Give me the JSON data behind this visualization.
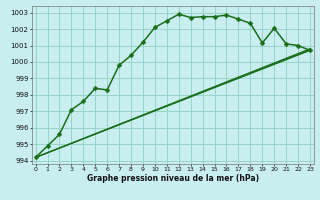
{
  "title": "Graphe pression niveau de la mer (hPa)",
  "background_color": "#c8eef0",
  "grid_color": "#98d4c8",
  "line_color": "#1a6e1a",
  "marker_color": "#1a6e1a",
  "series1_x": [
    0,
    1,
    2,
    3,
    4,
    5,
    6,
    7,
    8,
    9,
    10,
    11,
    12,
    13,
    14,
    15,
    16,
    17,
    18,
    19,
    20,
    21,
    22,
    23
  ],
  "series1_y": [
    994.2,
    994.9,
    995.6,
    997.1,
    997.6,
    998.4,
    998.3,
    999.8,
    1000.4,
    1001.2,
    1002.1,
    1002.5,
    1002.9,
    1002.7,
    1002.75,
    1002.75,
    1002.85,
    1002.6,
    1002.35,
    1001.15,
    1002.05,
    1001.1,
    1001.0,
    1000.7
  ],
  "line2_x": [
    0,
    23
  ],
  "line2_y": [
    994.2,
    1000.7
  ],
  "line3_x": [
    0,
    23
  ],
  "line3_y": [
    994.2,
    1000.75
  ],
  "line4_x": [
    0,
    23
  ],
  "line4_y": [
    994.2,
    1000.8
  ],
  "ylim": [
    993.8,
    1003.4
  ],
  "yticks": [
    994,
    995,
    996,
    997,
    998,
    999,
    1000,
    1001,
    1002,
    1003
  ],
  "xlim": [
    -0.3,
    23.3
  ],
  "xticks": [
    0,
    1,
    2,
    3,
    4,
    5,
    6,
    7,
    8,
    9,
    10,
    11,
    12,
    13,
    14,
    15,
    16,
    17,
    18,
    19,
    20,
    21,
    22,
    23
  ]
}
